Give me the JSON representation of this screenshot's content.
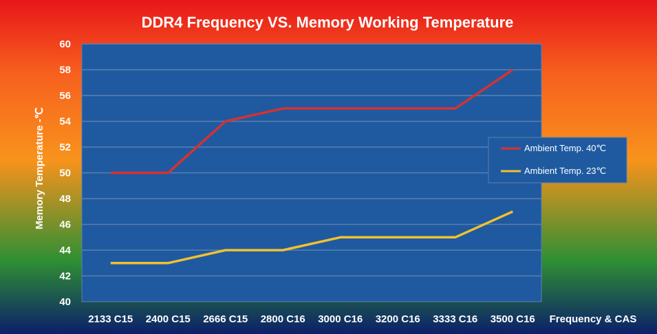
{
  "chart_data": {
    "type": "line",
    "title": "DDR4 Frequency VS. Memory Working Temperature",
    "xlabel": "Frequency & CAS",
    "ylabel": "Memory Temperature  -℃",
    "categories": [
      "2133 C15",
      "2400 C15",
      "2666 C15",
      "2800 C16",
      "3000 C16",
      "3200 C16",
      "3333 C16",
      "3500 C16"
    ],
    "ylim": [
      40,
      60
    ],
    "yticks": [
      40,
      42,
      44,
      46,
      48,
      50,
      52,
      54,
      56,
      58,
      60
    ],
    "grid": true,
    "legend_position": "right",
    "series": [
      {
        "name": "Ambient Temp. 40℃",
        "color": "#d8312f",
        "values": [
          50,
          50,
          54,
          55,
          55,
          55,
          55,
          58
        ]
      },
      {
        "name": "Ambient Temp. 23℃",
        "color": "#f2c12e",
        "values": [
          43,
          43,
          44,
          44,
          45,
          45,
          45,
          47
        ]
      }
    ],
    "colors": {
      "plot_background": "#1f5aa0",
      "gridline": "#5c7fb0",
      "gradient_top": "#e8161a",
      "gradient_upper": "#f7601e",
      "gradient_mid": "#f8931c",
      "gradient_lower": "#2f8f34",
      "gradient_bottom": "#0c1f6a"
    }
  }
}
